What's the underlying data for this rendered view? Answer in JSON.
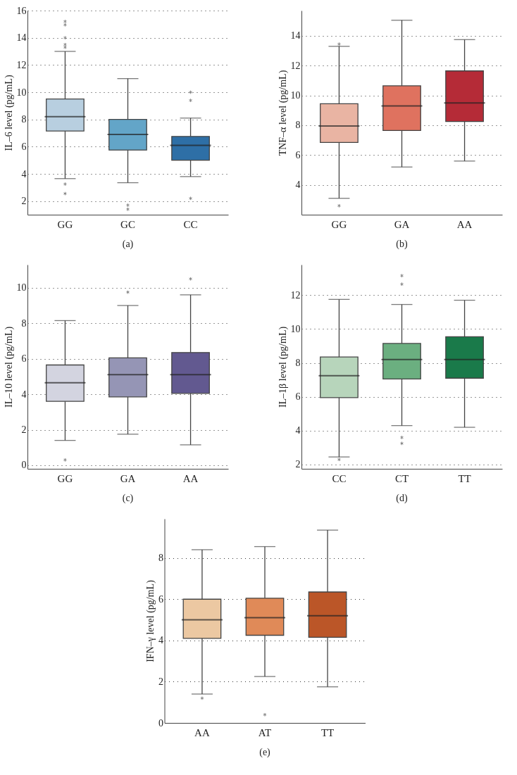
{
  "chart_data": [
    {
      "type": "box",
      "ylabel": "IL–6 level (pg/mL)",
      "annotations": [
        "(a)"
      ],
      "categories": [
        "GG",
        "GC",
        "CC"
      ],
      "colors": [
        "#b8cfe0",
        "#63a5c8",
        "#2e6fa6"
      ],
      "ylim": [
        1,
        16
      ],
      "yticks": [
        2,
        4,
        6,
        8,
        10,
        12,
        14,
        16
      ],
      "grid": "y",
      "boxes": [
        {
          "low": 3.65,
          "q1": 7.15,
          "median": 8.2,
          "q3": 9.5,
          "high": 13.0,
          "outliers": [
            2.55,
            3.25,
            13.3,
            13.5,
            14.0,
            14.95,
            15.2
          ]
        },
        {
          "low": 3.35,
          "q1": 5.75,
          "median": 6.9,
          "q3": 8.0,
          "high": 11.0,
          "outliers": [
            1.4,
            1.7
          ]
        },
        {
          "low": 3.8,
          "q1": 5.0,
          "median": 6.1,
          "q3": 6.75,
          "high": 8.1,
          "outliers": [
            2.2,
            9.4,
            10.0
          ]
        }
      ]
    },
    {
      "type": "box",
      "ylabel": "TNF–α level (pg/mL)",
      "annotations": [
        "(b)"
      ],
      "categories": [
        "GG",
        "GA",
        "AA"
      ],
      "colors": [
        "#e9b4a3",
        "#df725f",
        "#b52b37"
      ],
      "ylim": [
        2,
        15.7
      ],
      "yticks": [
        4,
        6,
        8,
        10,
        12,
        14
      ],
      "grid": "y",
      "boxes": [
        {
          "low": 3.1,
          "q1": 6.85,
          "median": 7.95,
          "q3": 9.45,
          "high": 13.3,
          "outliers": [
            2.6,
            13.45
          ]
        },
        {
          "low": 5.2,
          "q1": 7.65,
          "median": 9.3,
          "q3": 10.65,
          "high": 15.05
        },
        {
          "low": 5.6,
          "q1": 8.25,
          "median": 9.5,
          "q3": 11.65,
          "high": 13.75
        }
      ]
    },
    {
      "type": "box",
      "ylabel": "IL–10 level (pg/mL)",
      "annotations": [
        "(c)"
      ],
      "categories": [
        "GG",
        "GA",
        "AA"
      ],
      "colors": [
        "#d3d4e0",
        "#9595b5",
        "#625990"
      ],
      "ylim": [
        -0.2,
        11.3
      ],
      "yticks": [
        0,
        2,
        4,
        6,
        8,
        10
      ],
      "grid": "y",
      "boxes": [
        {
          "low": 1.4,
          "q1": 3.6,
          "median": 4.65,
          "q3": 5.65,
          "high": 8.15,
          "outliers": [
            0.3
          ]
        },
        {
          "low": 1.75,
          "q1": 3.85,
          "median": 5.1,
          "q3": 6.05,
          "high": 9.0,
          "outliers": [
            9.75
          ]
        },
        {
          "low": 1.15,
          "q1": 4.05,
          "median": 5.1,
          "q3": 6.35,
          "high": 9.6,
          "outliers": [
            10.5
          ]
        }
      ]
    },
    {
      "type": "box",
      "ylabel": "IL–1β level (pg/mL)",
      "annotations": [
        "(d)"
      ],
      "categories": [
        "CC",
        "CT",
        "TT"
      ],
      "colors": [
        "#b7d5bb",
        "#6baf80",
        "#1a7a4a"
      ],
      "ylim": [
        1.75,
        13.8
      ],
      "yticks": [
        2,
        4,
        6,
        8,
        10,
        12
      ],
      "grid": "y",
      "boxes": [
        {
          "low": 2.45,
          "q1": 5.95,
          "median": 7.25,
          "q3": 8.35,
          "high": 11.75,
          "outliers": [
            2.3
          ]
        },
        {
          "low": 4.3,
          "q1": 7.05,
          "median": 8.2,
          "q3": 9.15,
          "high": 11.45,
          "outliers": [
            3.25,
            3.6,
            12.65,
            13.15
          ]
        },
        {
          "low": 4.2,
          "q1": 7.1,
          "median": 8.2,
          "q3": 9.55,
          "high": 11.7
        }
      ]
    },
    {
      "type": "box",
      "ylabel": "IFN–γ level (pg/mL)",
      "annotations": [
        "(e)"
      ],
      "categories": [
        "AA",
        "AT",
        "TT"
      ],
      "colors": [
        "#ecc8a2",
        "#e08a58",
        "#bb5628"
      ],
      "ylim": [
        0,
        9.9
      ],
      "yticks": [
        0,
        2,
        4,
        6,
        8
      ],
      "grid": "y",
      "boxes": [
        {
          "low": 1.4,
          "q1": 4.1,
          "median": 5.0,
          "q3": 6.0,
          "high": 8.4,
          "outliers": [
            1.2
          ]
        },
        {
          "low": 2.25,
          "q1": 4.25,
          "median": 5.1,
          "q3": 6.05,
          "high": 8.55,
          "outliers": [
            0.4
          ]
        },
        {
          "low": 1.75,
          "q1": 4.15,
          "median": 5.2,
          "q3": 6.35,
          "high": 9.35
        }
      ]
    }
  ]
}
